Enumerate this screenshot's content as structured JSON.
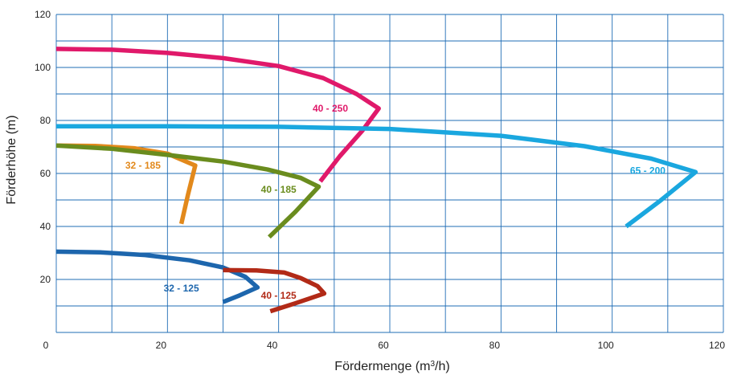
{
  "chart_data": {
    "type": "line",
    "xlabel_main": "Fördermenge (m",
    "xlabel_sup": "3",
    "xlabel_tail": "/h)",
    "ylabel": "Förderhöhe (m)",
    "xlim": [
      0,
      120
    ],
    "ylim": [
      0,
      120
    ],
    "x_ticks": [
      0,
      20,
      40,
      60,
      80,
      100,
      120
    ],
    "y_ticks": [
      20,
      40,
      60,
      80,
      100,
      120
    ],
    "grid": true,
    "grid_color": "#1f6cb5",
    "series": [
      {
        "name": "40 - 250",
        "color": "#e0196a",
        "points": [
          [
            0,
            107
          ],
          [
            10,
            106.7
          ],
          [
            20,
            105.5
          ],
          [
            30,
            103.5
          ],
          [
            40,
            100.5
          ],
          [
            48,
            96
          ],
          [
            54,
            90
          ],
          [
            58,
            84.5
          ],
          [
            55,
            76
          ],
          [
            51,
            66.5
          ],
          [
            47.5,
            57
          ]
        ]
      },
      {
        "name": "65 - 200",
        "color": "#1aa7df",
        "points": [
          [
            0,
            77.8
          ],
          [
            20,
            77.8
          ],
          [
            40,
            77.6
          ],
          [
            60,
            76.8
          ],
          [
            80,
            74.2
          ],
          [
            95,
            70.3
          ],
          [
            107,
            65.6
          ],
          [
            115,
            60.5
          ],
          [
            108.5,
            49.5
          ],
          [
            102.5,
            40
          ]
        ]
      },
      {
        "name": "32 - 185",
        "color": "#e2891c",
        "points": [
          [
            0,
            70.5
          ],
          [
            7,
            70.4
          ],
          [
            14,
            69.5
          ],
          [
            20,
            67.5
          ],
          [
            25,
            63
          ],
          [
            23.7,
            52
          ],
          [
            22.5,
            41
          ]
        ]
      },
      {
        "name": "40 - 185",
        "color": "#6a8c1e",
        "points": [
          [
            0,
            70.5
          ],
          [
            10,
            69.3
          ],
          [
            20,
            67
          ],
          [
            30,
            64.5
          ],
          [
            38,
            61.5
          ],
          [
            44,
            58.3
          ],
          [
            47.2,
            55
          ],
          [
            43,
            45.5
          ],
          [
            38.3,
            36
          ]
        ]
      },
      {
        "name": "32 - 125",
        "color": "#1d66ad",
        "points": [
          [
            0,
            30.5
          ],
          [
            8,
            30.2
          ],
          [
            16,
            29.2
          ],
          [
            24,
            27.2
          ],
          [
            30,
            24.5
          ],
          [
            34,
            21
          ],
          [
            36.2,
            17
          ],
          [
            33,
            14
          ],
          [
            30,
            11.5
          ]
        ]
      },
      {
        "name": "40 - 125",
        "color": "#b22a17",
        "points": [
          [
            30,
            23.5
          ],
          [
            36,
            23.4
          ],
          [
            41,
            22.6
          ],
          [
            44,
            20.5
          ],
          [
            47,
            17.5
          ],
          [
            48.2,
            14.7
          ],
          [
            43,
            11
          ],
          [
            38.5,
            8
          ]
        ]
      }
    ],
    "labels": [
      {
        "text": "40 - 250",
        "x": 49.3,
        "y": 84.5,
        "color": "#e0196a"
      },
      {
        "text": "65 - 200",
        "x": 106.4,
        "y": 61,
        "color": "#1aa7df"
      },
      {
        "text": "32 - 185",
        "x": 15.6,
        "y": 63,
        "color": "#e2891c"
      },
      {
        "text": "40 - 185",
        "x": 40,
        "y": 54,
        "color": "#6a8c1e"
      },
      {
        "text": "32 - 125",
        "x": 22.5,
        "y": 16.7,
        "color": "#1d66ad"
      },
      {
        "text": "40 - 125",
        "x": 40,
        "y": 14,
        "color": "#b22a17"
      }
    ]
  }
}
